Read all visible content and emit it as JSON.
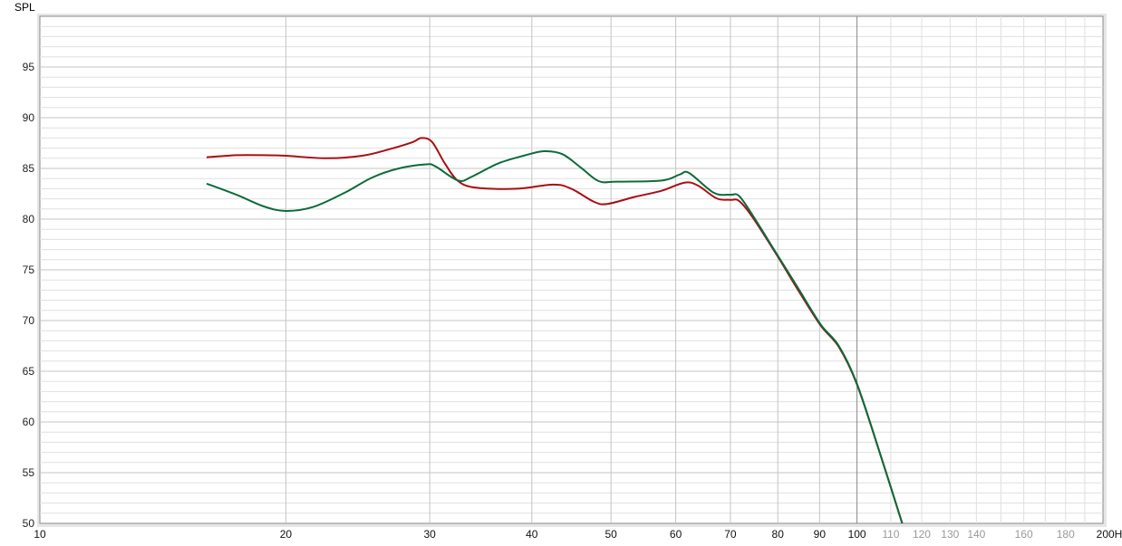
{
  "chart_data": {
    "type": "line",
    "ylabel": "SPL",
    "xunit": "Hz",
    "xscale": "log",
    "xlim": [
      10,
      200
    ],
    "ylim": [
      50,
      100
    ],
    "grid": true,
    "x_ticks_major": [
      {
        "value": 10,
        "label": "10"
      },
      {
        "value": 20,
        "label": "20"
      },
      {
        "value": 30,
        "label": "30"
      },
      {
        "value": 40,
        "label": "40"
      },
      {
        "value": 50,
        "label": "50"
      },
      {
        "value": 60,
        "label": "60"
      },
      {
        "value": 70,
        "label": "70"
      },
      {
        "value": 80,
        "label": "80"
      },
      {
        "value": 90,
        "label": "90"
      },
      {
        "value": 100,
        "label": "100"
      },
      {
        "value": 200,
        "label": "200Hz"
      }
    ],
    "x_ticks_minor": [
      {
        "value": 110,
        "label": "110"
      },
      {
        "value": 120,
        "label": "120"
      },
      {
        "value": 130,
        "label": "130"
      },
      {
        "value": 140,
        "label": "140"
      },
      {
        "value": 160,
        "label": "160"
      },
      {
        "value": 180,
        "label": "180"
      }
    ],
    "y_ticks": [
      "50",
      "55",
      "60",
      "65",
      "70",
      "75",
      "80",
      "85",
      "90",
      "95"
    ],
    "colors": {
      "series_red": "#a80f14",
      "series_green": "#0c6b3b",
      "grid": "#cfcfcf",
      "grid_major_100": "#888888",
      "minor_label": "#999999"
    },
    "series": [
      {
        "color": "#a80f14",
        "points": [
          [
            16,
            86.1
          ],
          [
            17.4,
            86.3
          ],
          [
            18.8,
            86.3
          ],
          [
            20,
            86.25
          ],
          [
            22.4,
            86.0
          ],
          [
            24.8,
            86.25
          ],
          [
            26.8,
            86.9
          ],
          [
            28.6,
            87.6
          ],
          [
            29.3,
            88.0
          ],
          [
            30.2,
            87.6
          ],
          [
            31.3,
            85.5
          ],
          [
            32.5,
            83.75
          ],
          [
            34.2,
            83.1
          ],
          [
            38.4,
            83.0
          ],
          [
            42.5,
            83.4
          ],
          [
            44.7,
            83.0
          ],
          [
            47.7,
            81.7
          ],
          [
            49.5,
            81.5
          ],
          [
            53.5,
            82.2
          ],
          [
            57.7,
            82.8
          ],
          [
            61.5,
            83.6
          ],
          [
            63.9,
            83.3
          ],
          [
            67.3,
            82.05
          ],
          [
            69.9,
            81.9
          ],
          [
            71.7,
            81.8
          ],
          [
            74.5,
            80.2
          ],
          [
            80,
            76.3
          ],
          [
            84.7,
            73.0
          ],
          [
            90.3,
            69.5
          ],
          [
            95,
            67.4
          ],
          [
            100,
            63.7
          ],
          [
            106.6,
            57.0
          ],
          [
            113.6,
            50.0
          ]
        ]
      },
      {
        "color": "#0c6b3b",
        "points": [
          [
            16,
            83.5
          ],
          [
            17.4,
            82.4
          ],
          [
            18.8,
            81.25
          ],
          [
            20,
            80.8
          ],
          [
            21.6,
            81.2
          ],
          [
            23.6,
            82.6
          ],
          [
            25.5,
            84.1
          ],
          [
            27.5,
            85.0
          ],
          [
            29.7,
            85.4
          ],
          [
            30.5,
            85.2
          ],
          [
            32.5,
            83.8
          ],
          [
            33.8,
            84.2
          ],
          [
            36.4,
            85.5
          ],
          [
            39.3,
            86.3
          ],
          [
            41.4,
            86.7
          ],
          [
            43.6,
            86.4
          ],
          [
            45.9,
            85.1
          ],
          [
            48.3,
            83.75
          ],
          [
            50.8,
            83.7
          ],
          [
            57.7,
            83.8
          ],
          [
            60.7,
            84.4
          ],
          [
            62.3,
            84.55
          ],
          [
            66.8,
            82.6
          ],
          [
            69.9,
            82.4
          ],
          [
            71.7,
            82.3
          ],
          [
            74.5,
            80.4
          ],
          [
            80,
            76.4
          ],
          [
            84.7,
            73.2
          ],
          [
            90.3,
            69.6
          ],
          [
            95,
            67.5
          ],
          [
            100,
            63.75
          ],
          [
            106.6,
            57.0
          ],
          [
            113.6,
            50.0
          ]
        ]
      }
    ]
  }
}
